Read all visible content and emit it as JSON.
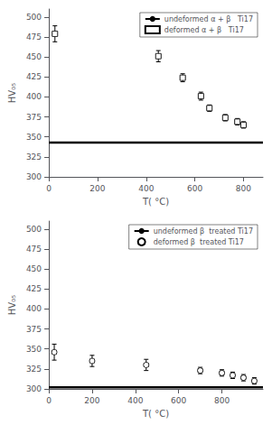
{
  "chart_data": [
    {
      "type": "scatter",
      "xlabel": "T( °C)",
      "ylabel": "HV₀₅",
      "xlim": [
        0,
        880
      ],
      "xticks": [
        0,
        200,
        400,
        600,
        800
      ],
      "ylim": [
        300,
        510
      ],
      "yticks": [
        300,
        325,
        350,
        375,
        400,
        425,
        450,
        475,
        500
      ],
      "grid": false,
      "legend": "upper right",
      "series": [
        {
          "name": "undeformed α + β   Ti17",
          "type": "hline",
          "values": [
            343
          ],
          "color": "black"
        },
        {
          "name": "deformed α + β   Ti17",
          "type": "scatter",
          "marker": "square",
          "color": "white",
          "x": [
            25,
            450,
            550,
            625,
            660,
            725,
            775,
            800
          ],
          "values": [
            479,
            451,
            424,
            401,
            386,
            374,
            369,
            365
          ],
          "xerr": [
            10,
            10,
            10,
            10,
            10,
            10,
            10,
            10
          ],
          "yerr": [
            10,
            7,
            5,
            5,
            4,
            4,
            4,
            4
          ]
        }
      ]
    },
    {
      "type": "scatter",
      "xlabel": "T( °C)",
      "ylabel": "HV₀₅",
      "xlim": [
        0,
        990
      ],
      "xticks": [
        0,
        200,
        400,
        600,
        800
      ],
      "ylim": [
        300,
        510
      ],
      "yticks": [
        300,
        325,
        350,
        375,
        400,
        425,
        450,
        475,
        500
      ],
      "grid": false,
      "legend": "upper right",
      "series": [
        {
          "name": "undeformed β  treated Ti17",
          "type": "hline",
          "values": [
            302
          ],
          "color": "black"
        },
        {
          "name": "deformed β  treated Ti17",
          "type": "scatter",
          "marker": "circle",
          "color": "white",
          "x": [
            25,
            200,
            450,
            700,
            800,
            850,
            900,
            950
          ],
          "values": [
            346,
            335,
            330,
            323,
            320,
            317,
            314,
            310
          ],
          "xerr": [
            10,
            10,
            10,
            10,
            10,
            10,
            10,
            10
          ],
          "yerr": [
            10,
            7,
            7,
            4,
            4,
            4,
            4,
            4
          ]
        }
      ]
    }
  ]
}
